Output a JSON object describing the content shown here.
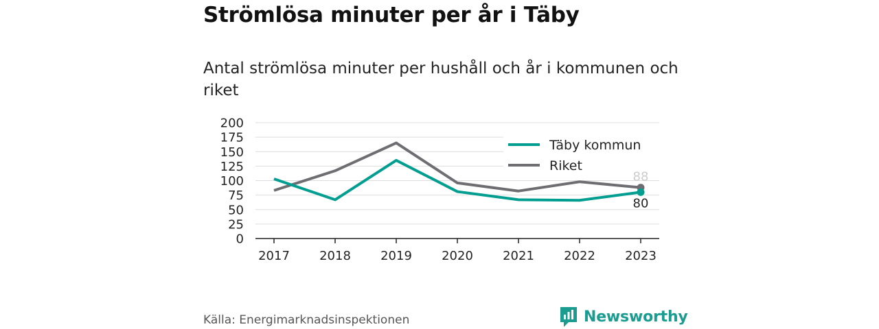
{
  "title": "Strömlösa minuter per år i Täby",
  "subtitle": "Antal strömlösa minuter per hushåll och år i kommunen och riket",
  "source": "Källa: Energimarknadsinspektionen",
  "brand": "Newsworthy",
  "colors": {
    "taby": "#009e91",
    "riket": "#6e6d72",
    "brand": "#1a9c91"
  },
  "chart_data": {
    "type": "line",
    "x": [
      "2017",
      "2018",
      "2019",
      "2020",
      "2021",
      "2022",
      "2023"
    ],
    "series": [
      {
        "name": "Täby kommun",
        "values": [
          103,
          67,
          135,
          81,
          67,
          66,
          80
        ]
      },
      {
        "name": "Riket",
        "values": [
          83,
          117,
          165,
          96,
          82,
          98,
          88
        ]
      }
    ],
    "yticks": [
      "0",
      "25",
      "50",
      "75",
      "100",
      "125",
      "150",
      "175",
      "200"
    ],
    "ylim": [
      0,
      200
    ],
    "end_labels": {
      "taby": "80",
      "riket": "88"
    },
    "grid": true,
    "legend": "top-right"
  }
}
